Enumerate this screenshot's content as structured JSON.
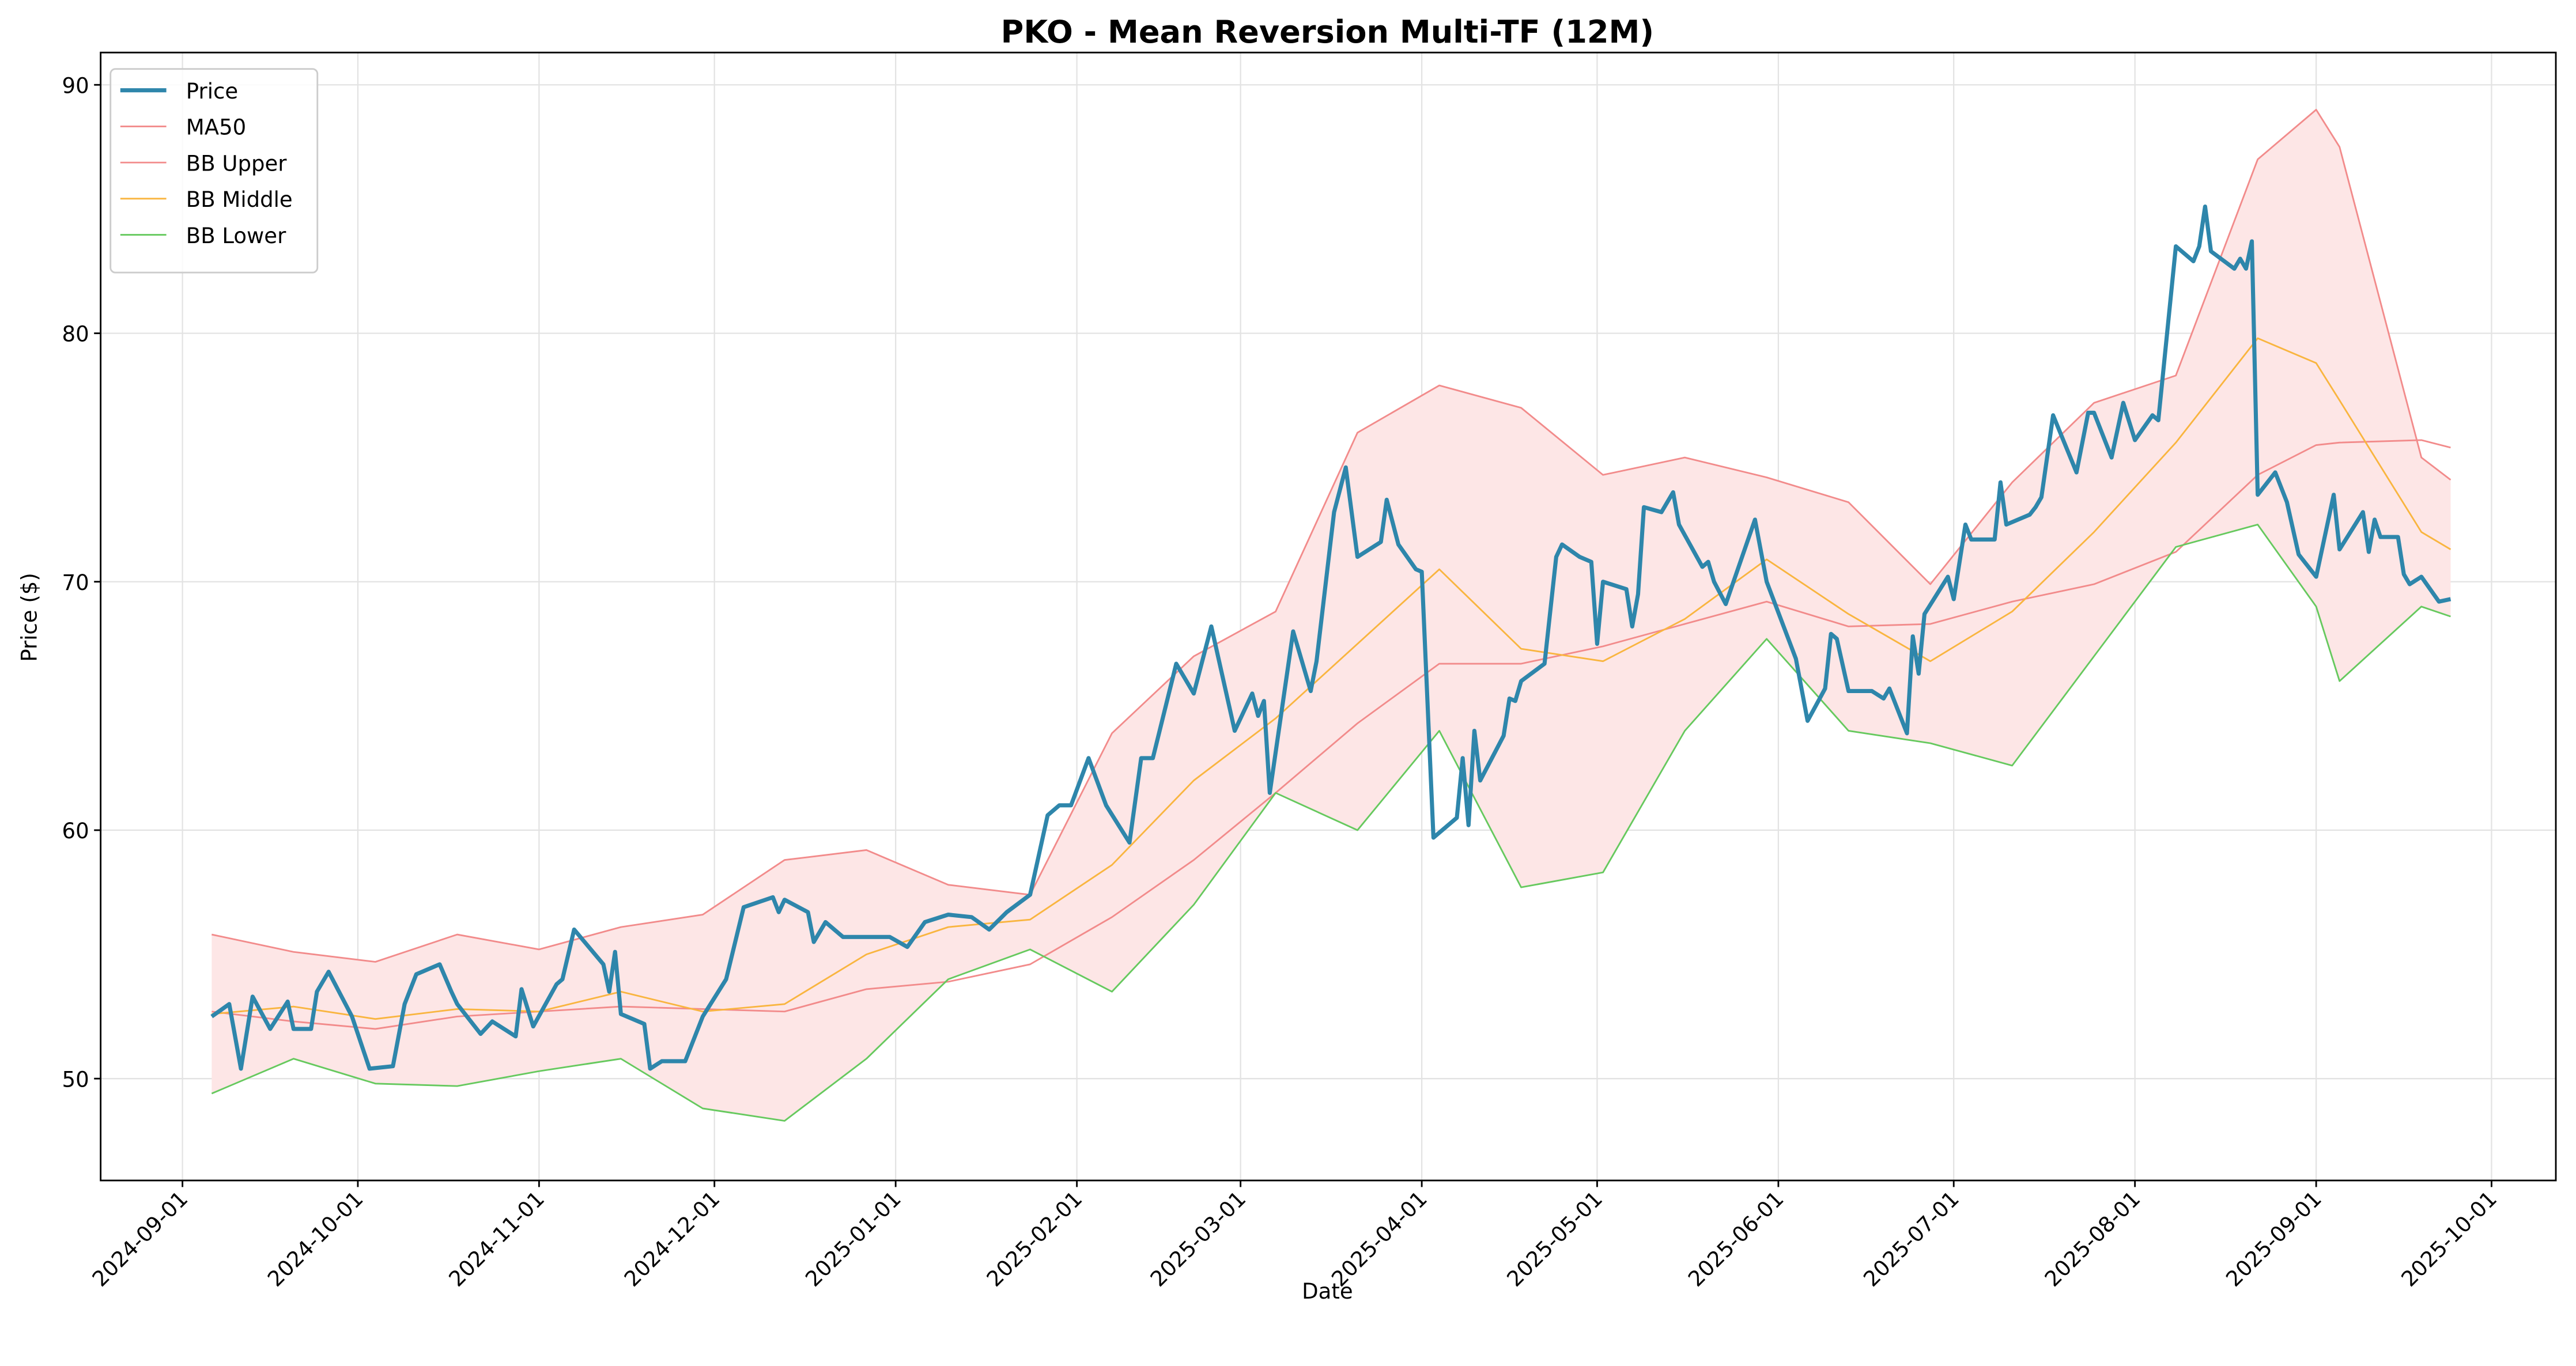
{
  "chart_data": {
    "type": "line",
    "title": "PKO - Mean Reversion Multi-TF (12M)",
    "xlabel": "Date",
    "ylabel": "Price ($)",
    "xlim": [
      "2024-08-18",
      "2025-10-12"
    ],
    "xticks": [
      "2024-09-01",
      "2024-10-01",
      "2024-11-01",
      "2024-12-01",
      "2025-01-01",
      "2025-02-01",
      "2025-03-01",
      "2025-04-01",
      "2025-05-01",
      "2025-06-01",
      "2025-07-01",
      "2025-08-01",
      "2025-09-01",
      "2025-10-01"
    ],
    "ylim": [
      45.9,
      91.3
    ],
    "yticks": [
      50,
      60,
      70,
      80,
      90
    ],
    "grid": true,
    "legend": "upper left",
    "fill_between": [
      2,
      4
    ],
    "fill_color": "#fde6e6",
    "x": [
      "2024-09-06",
      "2024-09-20",
      "2024-10-04",
      "2024-10-18",
      "2024-11-01",
      "2024-11-15",
      "2024-11-29",
      "2024-12-13",
      "2024-12-27",
      "2025-01-10",
      "2025-01-24",
      "2025-02-07",
      "2025-02-21",
      "2025-03-07",
      "2025-03-21",
      "2025-04-04",
      "2025-04-18",
      "2025-05-02",
      "2025-05-16",
      "2025-05-30",
      "2025-06-13",
      "2025-06-27",
      "2025-07-11",
      "2025-07-25",
      "2025-08-08",
      "2025-08-22",
      "2025-09-01",
      "2025-09-05",
      "2025-09-19",
      "2025-09-24"
    ],
    "series": [
      {
        "name": "Price",
        "color": "#2e86ab",
        "width": 2.5,
        "x": [
          "2024-09-06",
          "2024-09-09",
          "2024-09-11",
          "2024-09-13",
          "2024-09-16",
          "2024-09-19",
          "2024-09-20",
          "2024-09-23",
          "2024-09-24",
          "2024-09-26",
          "2024-09-30",
          "2024-10-02",
          "2024-10-03",
          "2024-10-07",
          "2024-10-09",
          "2024-10-11",
          "2024-10-15",
          "2024-10-17",
          "2024-10-18",
          "2024-10-22",
          "2024-10-24",
          "2024-10-28",
          "2024-10-29",
          "2024-10-31",
          "2024-11-04",
          "2024-11-05",
          "2024-11-07",
          "2024-11-12",
          "2024-11-13",
          "2024-11-14",
          "2024-11-15",
          "2024-11-19",
          "2024-11-20",
          "2024-11-22",
          "2024-11-26",
          "2024-11-29",
          "2024-12-03",
          "2024-12-06",
          "2024-12-11",
          "2024-12-12",
          "2024-12-13",
          "2024-12-17",
          "2024-12-18",
          "2024-12-20",
          "2024-12-23",
          "2024-12-31",
          "2025-01-03",
          "2025-01-06",
          "2025-01-10",
          "2025-01-14",
          "2025-01-17",
          "2025-01-20",
          "2025-01-24",
          "2025-01-27",
          "2025-01-29",
          "2025-01-31",
          "2025-02-03",
          "2025-02-06",
          "2025-02-10",
          "2025-02-12",
          "2025-02-14",
          "2025-02-18",
          "2025-02-21",
          "2025-02-24",
          "2025-02-28",
          "2025-03-03",
          "2025-03-04",
          "2025-03-05",
          "2025-03-06",
          "2025-03-10",
          "2025-03-13",
          "2025-03-14",
          "2025-03-17",
          "2025-03-19",
          "2025-03-21",
          "2025-03-25",
          "2025-03-26",
          "2025-03-28",
          "2025-03-31",
          "2025-04-01",
          "2025-04-03",
          "2025-04-07",
          "2025-04-08",
          "2025-04-09",
          "2025-04-10",
          "2025-04-11",
          "2025-04-15",
          "2025-04-16",
          "2025-04-17",
          "2025-04-18",
          "2025-04-22",
          "2025-04-24",
          "2025-04-25",
          "2025-04-28",
          "2025-04-30",
          "2025-05-01",
          "2025-05-02",
          "2025-05-06",
          "2025-05-07",
          "2025-05-08",
          "2025-05-09",
          "2025-05-12",
          "2025-05-14",
          "2025-05-15",
          "2025-05-19",
          "2025-05-20",
          "2025-05-21",
          "2025-05-23",
          "2025-05-28",
          "2025-05-30",
          "2025-06-04",
          "2025-06-06",
          "2025-06-09",
          "2025-06-10",
          "2025-06-11",
          "2025-06-13",
          "2025-06-17",
          "2025-06-19",
          "2025-06-20",
          "2025-06-23",
          "2025-06-24",
          "2025-06-25",
          "2025-06-26",
          "2025-06-30",
          "2025-07-01",
          "2025-07-03",
          "2025-07-04",
          "2025-07-08",
          "2025-07-09",
          "2025-07-10",
          "2025-07-14",
          "2025-07-15",
          "2025-07-16",
          "2025-07-18",
          "2025-07-22",
          "2025-07-24",
          "2025-07-25",
          "2025-07-28",
          "2025-07-30",
          "2025-08-01",
          "2025-08-04",
          "2025-08-05",
          "2025-08-08",
          "2025-08-11",
          "2025-08-12",
          "2025-08-13",
          "2025-08-14",
          "2025-08-18",
          "2025-08-19",
          "2025-08-20",
          "2025-08-21",
          "2025-08-22",
          "2025-08-25",
          "2025-08-27",
          "2025-08-29",
          "2025-09-01",
          "2025-09-04",
          "2025-09-05",
          "2025-09-09",
          "2025-09-10",
          "2025-09-11",
          "2025-09-12",
          "2025-09-15",
          "2025-09-16",
          "2025-09-17",
          "2025-09-19",
          "2025-09-22",
          "2025-09-24"
        ],
        "values": [
          52.5,
          53.0,
          50.4,
          53.3,
          52.0,
          53.1,
          52.0,
          52.0,
          53.5,
          54.3,
          52.5,
          51.1,
          50.4,
          50.5,
          53.0,
          54.2,
          54.6,
          53.5,
          53.0,
          51.8,
          52.3,
          51.7,
          53.6,
          52.1,
          53.8,
          54.0,
          56.0,
          54.6,
          53.5,
          55.1,
          52.6,
          52.2,
          50.4,
          50.7,
          50.7,
          52.5,
          54.0,
          56.9,
          57.3,
          56.7,
          57.2,
          56.7,
          55.5,
          56.3,
          55.7,
          55.7,
          55.3,
          56.3,
          56.6,
          56.5,
          56.0,
          56.7,
          57.4,
          60.6,
          61.0,
          61.0,
          62.9,
          61.0,
          59.5,
          62.9,
          62.9,
          66.7,
          65.5,
          68.2,
          64.0,
          65.5,
          64.6,
          65.2,
          61.5,
          68.0,
          65.6,
          66.8,
          72.8,
          74.6,
          71.0,
          71.6,
          73.3,
          71.5,
          70.5,
          70.4,
          59.7,
          60.5,
          62.9,
          60.2,
          64.0,
          62.0,
          63.8,
          65.3,
          65.2,
          66.0,
          66.7,
          71.0,
          71.5,
          71.0,
          70.8,
          67.5,
          70.0,
          69.7,
          68.2,
          69.5,
          73.0,
          72.8,
          73.6,
          72.3,
          70.6,
          70.8,
          70.0,
          69.1,
          72.5,
          70.0,
          66.9,
          64.4,
          65.7,
          67.9,
          67.7,
          65.6,
          65.6,
          65.3,
          65.7,
          63.9,
          67.8,
          66.3,
          68.7,
          70.2,
          69.3,
          72.3,
          71.7,
          71.7,
          74.0,
          72.3,
          72.7,
          73.0,
          73.4,
          76.7,
          74.4,
          76.8,
          76.8,
          75.0,
          77.2,
          75.7,
          76.7,
          76.5,
          83.5,
          82.9,
          83.5,
          85.1,
          83.3,
          82.6,
          83.0,
          82.6,
          83.7,
          73.5,
          74.4,
          73.2,
          71.1,
          70.2,
          73.5,
          71.3,
          72.8,
          71.2,
          72.5,
          71.8,
          71.8,
          70.3,
          69.9,
          70.2,
          69.2,
          69.3
        ]
      },
      {
        "name": "MA50",
        "color": "#f28b8b",
        "width": 1,
        "values": [
          52.7,
          52.3,
          52.0,
          52.5,
          52.7,
          52.9,
          52.8,
          52.7,
          53.6,
          53.9,
          54.6,
          56.5,
          58.8,
          61.5,
          64.3,
          66.7,
          66.7,
          67.4,
          68.3,
          69.2,
          68.2,
          68.3,
          69.2,
          69.9,
          71.2,
          74.3,
          75.5,
          75.6,
          75.7,
          75.4
        ]
      },
      {
        "name": "BB Upper",
        "color": "#f28b8b",
        "width": 1,
        "values": [
          55.8,
          55.1,
          54.7,
          55.8,
          55.2,
          56.1,
          56.6,
          58.8,
          59.2,
          57.8,
          57.4,
          63.9,
          67.0,
          68.8,
          76.0,
          77.9,
          77.0,
          74.3,
          75.0,
          74.2,
          73.2,
          69.9,
          74.0,
          77.2,
          78.3,
          87.0,
          89.0,
          87.5,
          75.0,
          74.1
        ]
      },
      {
        "name": "BB Middle",
        "color": "#f9b53f",
        "width": 1,
        "values": [
          52.6,
          52.9,
          52.4,
          52.8,
          52.7,
          53.5,
          52.7,
          53.0,
          55.0,
          56.1,
          56.4,
          58.6,
          62.0,
          64.5,
          67.5,
          70.5,
          67.3,
          66.8,
          68.5,
          70.9,
          68.7,
          66.8,
          68.8,
          72.0,
          75.6,
          79.8,
          78.8,
          77.3,
          72.0,
          71.3
        ]
      },
      {
        "name": "BB Lower",
        "color": "#66c95e",
        "width": 1,
        "values": [
          49.4,
          50.8,
          49.8,
          49.7,
          50.3,
          50.8,
          48.8,
          48.3,
          50.8,
          54.0,
          55.2,
          53.5,
          57.0,
          61.5,
          60.0,
          64.0,
          57.7,
          58.3,
          64.0,
          67.7,
          64.0,
          63.5,
          62.6,
          67.0,
          71.4,
          72.3,
          69.0,
          66.0,
          69.0,
          68.6
        ]
      }
    ]
  }
}
